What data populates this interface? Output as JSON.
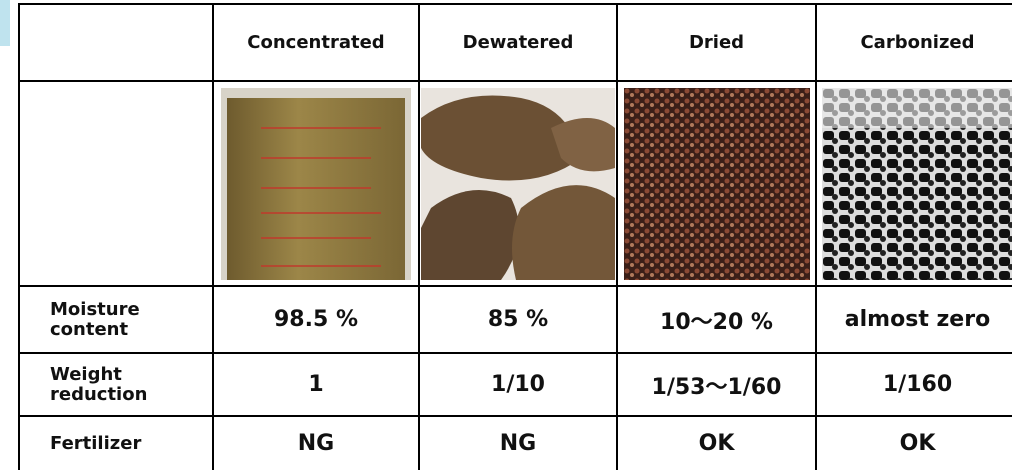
{
  "table": {
    "columns": [
      "Concentrated",
      "Dewatered",
      "Dried",
      "Carbonized"
    ],
    "rows": [
      {
        "label": "Moisture content",
        "cells": [
          "98.5 %",
          "85 %",
          "10～20 %",
          "almost zero"
        ]
      },
      {
        "label": "Weight reduction",
        "cells": [
          "1",
          "1/10",
          "1/53～1/60",
          "1/160"
        ]
      },
      {
        "label": "Fertilizer",
        "cells": [
          "NG",
          "NG",
          "OK",
          "OK"
        ]
      }
    ]
  }
}
